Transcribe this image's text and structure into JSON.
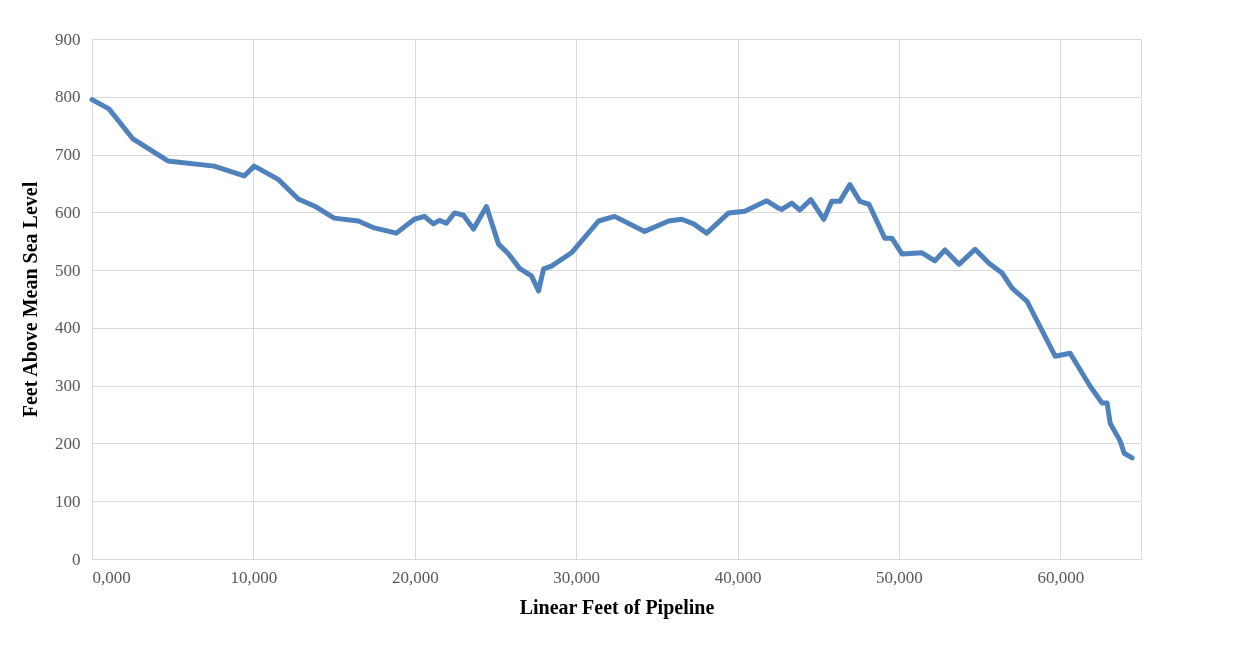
{
  "chart_data": {
    "type": "line",
    "xlabel": "Linear Feet of Pipeline",
    "ylabel": "Feet Above Mean Sea Level",
    "xlim": [
      0,
      65000
    ],
    "ylim": [
      0,
      900
    ],
    "xticks": [
      {
        "value": 0,
        "label": "0,000"
      },
      {
        "value": 10000,
        "label": "10,000"
      },
      {
        "value": 20000,
        "label": "20,000"
      },
      {
        "value": 30000,
        "label": "30,000"
      },
      {
        "value": 40000,
        "label": "40,000"
      },
      {
        "value": 50000,
        "label": "50,000"
      },
      {
        "value": 60000,
        "label": "60,000"
      }
    ],
    "yticks": [
      0,
      100,
      200,
      300,
      400,
      500,
      600,
      700,
      800,
      900
    ],
    "grid": true,
    "legend": false,
    "marker": "none",
    "line_style": "solid",
    "series": [
      {
        "color": "#4f81bd",
        "x": [
          0,
          1050,
          2540,
          4700,
          7570,
          9430,
          10050,
          11540,
          12780,
          13770,
          15010,
          16500,
          17490,
          18860,
          19970,
          20600,
          21150,
          21530,
          21960,
          22460,
          23020,
          23640,
          24440,
          25190,
          25810,
          26490,
          27230,
          27670,
          27980,
          28470,
          29710,
          31390,
          32380,
          34240,
          35730,
          36540,
          37280,
          38090,
          39450,
          40450,
          41810,
          42560,
          42740,
          43360,
          43860,
          44540,
          45350,
          45840,
          46340,
          46960,
          47580,
          48140,
          49130,
          49570,
          50190,
          51430,
          52230,
          52850,
          53720,
          54720,
          55580,
          56390,
          57010,
          57940,
          59680,
          60610,
          61850,
          62590,
          62900,
          63090,
          63710,
          63960,
          64450
        ],
        "values": [
          795,
          779,
          727,
          689,
          680,
          663,
          680,
          657,
          623,
          611,
          590,
          585,
          573,
          564,
          588,
          593,
          580,
          586,
          581,
          599,
          595,
          571,
          610,
          545,
          528,
          503,
          490,
          464,
          502,
          507,
          530,
          585,
          593,
          567,
          585,
          588,
          580,
          564,
          599,
          602,
          620,
          607,
          605,
          616,
          604,
          622,
          588,
          619,
          619,
          648,
          619,
          614,
          555,
          555,
          528,
          530,
          516,
          535,
          510,
          536,
          512,
          495,
          469,
          446,
          351,
          356,
          299,
          270,
          270,
          235,
          204,
          183,
          175
        ]
      }
    ]
  }
}
